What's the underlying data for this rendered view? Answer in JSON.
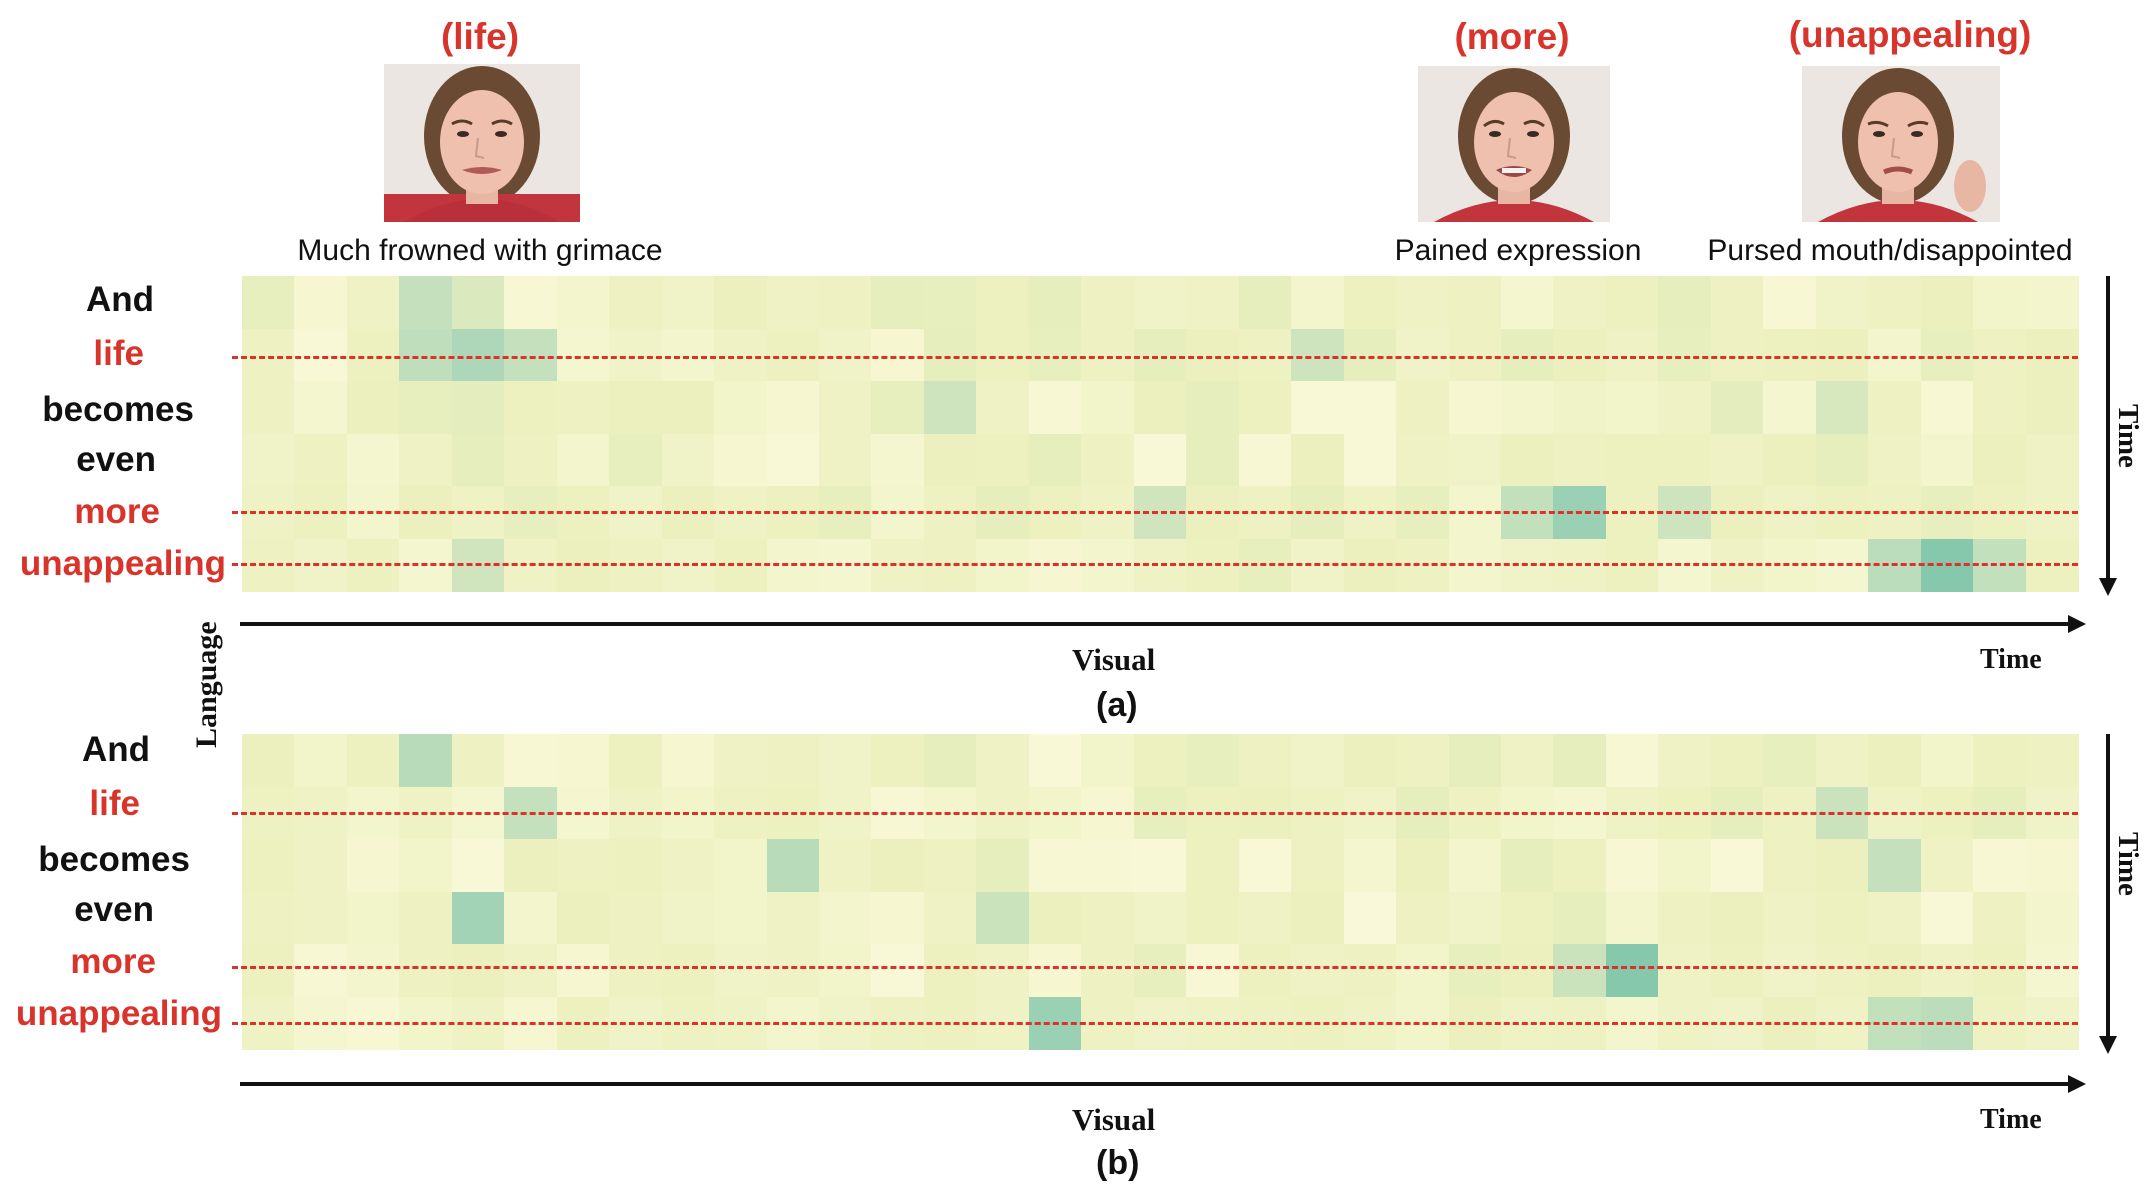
{
  "frames": [
    {
      "word": "(life)",
      "caption": "Much frowned with grimace"
    },
    {
      "word": "(more)",
      "caption": "Pained expression"
    },
    {
      "word": "(unappealing)",
      "caption": "Pursed mouth/disappointed"
    }
  ],
  "panel_a": {
    "words": [
      {
        "text": "And",
        "highlight": false
      },
      {
        "text": "life",
        "highlight": true
      },
      {
        "text": "becomes",
        "highlight": false
      },
      {
        "text": "even",
        "highlight": false
      },
      {
        "text": "more",
        "highlight": true
      },
      {
        "text": "unappealing",
        "highlight": true
      }
    ],
    "x_axis_label": "Visual",
    "x_axis_end": "Time",
    "y_axis_end": "Time",
    "tag": "(a)",
    "grid": [
      [
        0.28,
        0.1,
        0.2,
        0.55,
        0.4,
        0.08,
        0.14,
        0.22,
        0.18,
        0.26,
        0.2,
        0.22,
        0.3,
        0.28,
        0.24,
        0.3,
        0.22,
        0.18,
        0.2,
        0.3,
        0.14,
        0.24,
        0.2,
        0.22,
        0.12,
        0.2,
        0.24,
        0.3,
        0.22,
        0.08,
        0.18,
        0.22,
        0.26,
        0.16,
        0.14
      ],
      [
        0.22,
        0.06,
        0.24,
        0.58,
        0.68,
        0.55,
        0.12,
        0.18,
        0.14,
        0.2,
        0.24,
        0.18,
        0.1,
        0.3,
        0.24,
        0.28,
        0.22,
        0.3,
        0.26,
        0.22,
        0.5,
        0.3,
        0.18,
        0.22,
        0.3,
        0.26,
        0.2,
        0.28,
        0.22,
        0.24,
        0.26,
        0.14,
        0.28,
        0.22,
        0.26,
        0.3
      ],
      [
        0.22,
        0.12,
        0.26,
        0.28,
        0.32,
        0.24,
        0.22,
        0.26,
        0.26,
        0.16,
        0.1,
        0.2,
        0.28,
        0.5,
        0.2,
        0.08,
        0.16,
        0.26,
        0.3,
        0.24,
        0.06,
        0.06,
        0.22,
        0.1,
        0.14,
        0.18,
        0.16,
        0.2,
        0.32,
        0.12,
        0.42,
        0.22,
        0.08,
        0.22,
        0.26,
        0.18
      ],
      [
        0.18,
        0.22,
        0.12,
        0.2,
        0.3,
        0.22,
        0.14,
        0.28,
        0.18,
        0.1,
        0.06,
        0.2,
        0.12,
        0.26,
        0.24,
        0.3,
        0.22,
        0.06,
        0.3,
        0.08,
        0.26,
        0.06,
        0.2,
        0.18,
        0.26,
        0.22,
        0.24,
        0.24,
        0.2,
        0.26,
        0.3,
        0.2,
        0.14,
        0.26,
        0.2,
        0.14
      ],
      [
        0.2,
        0.24,
        0.14,
        0.26,
        0.2,
        0.28,
        0.24,
        0.18,
        0.26,
        0.2,
        0.24,
        0.28,
        0.14,
        0.22,
        0.3,
        0.24,
        0.2,
        0.48,
        0.26,
        0.22,
        0.3,
        0.2,
        0.28,
        0.14,
        0.56,
        0.78,
        0.24,
        0.5,
        0.26,
        0.2,
        0.24,
        0.22,
        0.28,
        0.24,
        0.2,
        0.22
      ],
      [
        0.22,
        0.18,
        0.24,
        0.12,
        0.48,
        0.2,
        0.26,
        0.22,
        0.18,
        0.24,
        0.14,
        0.12,
        0.2,
        0.22,
        0.16,
        0.1,
        0.14,
        0.2,
        0.24,
        0.28,
        0.18,
        0.26,
        0.22,
        0.14,
        0.18,
        0.2,
        0.24,
        0.12,
        0.2,
        0.16,
        0.12,
        0.6,
        0.88,
        0.56,
        0.24,
        0.2
      ]
    ]
  },
  "panel_b": {
    "words": [
      {
        "text": "And",
        "highlight": false
      },
      {
        "text": "life",
        "highlight": true
      },
      {
        "text": "becomes",
        "highlight": false
      },
      {
        "text": "even",
        "highlight": false
      },
      {
        "text": "more",
        "highlight": true
      },
      {
        "text": "unappealing",
        "highlight": true
      }
    ],
    "x_axis_label": "Visual",
    "x_axis_end": "Time",
    "y_axis_end": "Time",
    "tag": "(b)",
    "grid": [
      [
        0.26,
        0.16,
        0.24,
        0.62,
        0.22,
        0.08,
        0.1,
        0.24,
        0.1,
        0.2,
        0.22,
        0.18,
        0.24,
        0.3,
        0.2,
        0.06,
        0.16,
        0.24,
        0.28,
        0.22,
        0.18,
        0.26,
        0.22,
        0.3,
        0.2,
        0.3,
        0.08,
        0.2,
        0.24,
        0.28,
        0.2,
        0.26,
        0.16,
        0.24,
        0.22
      ],
      [
        0.22,
        0.2,
        0.14,
        0.2,
        0.12,
        0.55,
        0.12,
        0.2,
        0.16,
        0.22,
        0.24,
        0.18,
        0.08,
        0.14,
        0.2,
        0.16,
        0.1,
        0.28,
        0.24,
        0.26,
        0.22,
        0.18,
        0.3,
        0.22,
        0.16,
        0.12,
        0.2,
        0.24,
        0.3,
        0.22,
        0.52,
        0.2,
        0.24,
        0.3,
        0.18,
        0.14
      ],
      [
        0.24,
        0.2,
        0.1,
        0.16,
        0.06,
        0.26,
        0.22,
        0.24,
        0.2,
        0.16,
        0.62,
        0.2,
        0.26,
        0.22,
        0.3,
        0.08,
        0.08,
        0.06,
        0.24,
        0.06,
        0.22,
        0.12,
        0.26,
        0.14,
        0.3,
        0.24,
        0.08,
        0.16,
        0.06,
        0.22,
        0.26,
        0.55,
        0.2,
        0.08,
        0.1,
        0.22,
        0.12
      ],
      [
        0.22,
        0.2,
        0.16,
        0.22,
        0.74,
        0.14,
        0.26,
        0.22,
        0.18,
        0.16,
        0.2,
        0.14,
        0.1,
        0.2,
        0.52,
        0.26,
        0.22,
        0.18,
        0.24,
        0.2,
        0.26,
        0.04,
        0.22,
        0.18,
        0.24,
        0.3,
        0.14,
        0.22,
        0.26,
        0.2,
        0.24,
        0.2,
        0.06,
        0.22,
        0.14
      ],
      [
        0.24,
        0.08,
        0.14,
        0.22,
        0.26,
        0.2,
        0.1,
        0.22,
        0.24,
        0.18,
        0.2,
        0.16,
        0.06,
        0.24,
        0.2,
        0.1,
        0.22,
        0.28,
        0.08,
        0.24,
        0.2,
        0.22,
        0.16,
        0.28,
        0.26,
        0.52,
        0.88,
        0.2,
        0.24,
        0.18,
        0.22,
        0.26,
        0.2,
        0.24,
        0.12,
        0.2
      ],
      [
        0.2,
        0.12,
        0.08,
        0.16,
        0.2,
        0.1,
        0.24,
        0.18,
        0.22,
        0.2,
        0.14,
        0.18,
        0.22,
        0.24,
        0.2,
        0.78,
        0.22,
        0.18,
        0.2,
        0.22,
        0.24,
        0.2,
        0.16,
        0.26,
        0.2,
        0.22,
        0.14,
        0.2,
        0.18,
        0.26,
        0.2,
        0.56,
        0.6,
        0.22,
        0.18,
        0.54,
        0.76
      ]
    ]
  }
}
